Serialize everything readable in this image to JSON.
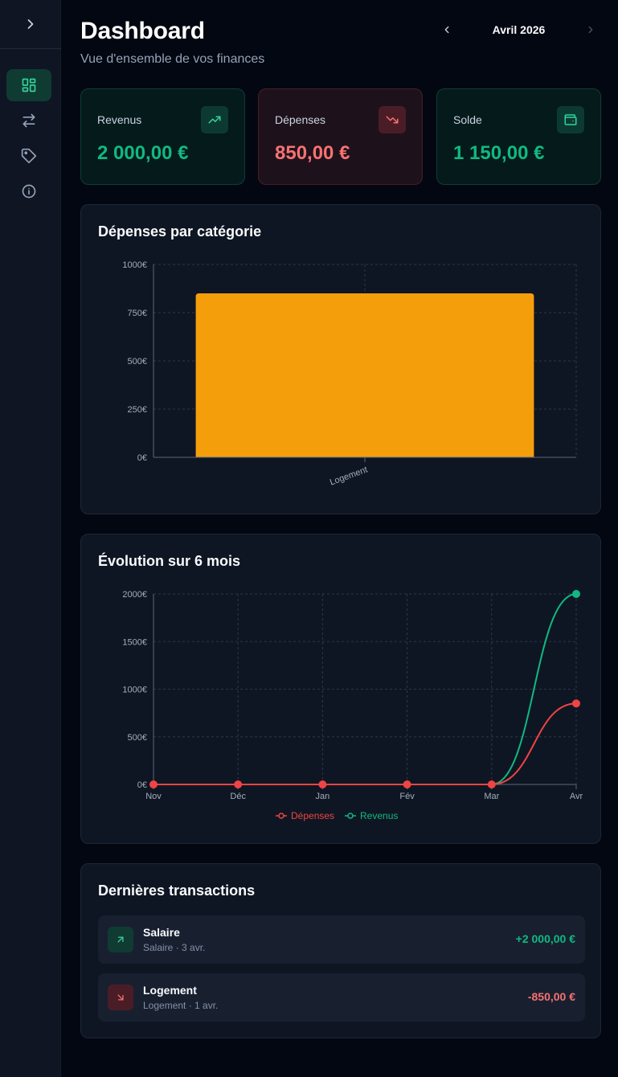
{
  "sidebar": {
    "toggle_icon": "chevron-right-icon",
    "items": [
      {
        "icon": "dashboard-grid-icon",
        "active": true
      },
      {
        "icon": "arrows-exchange-icon",
        "active": false
      },
      {
        "icon": "tag-icon",
        "active": false
      },
      {
        "icon": "info-circle-icon",
        "active": false
      }
    ]
  },
  "header": {
    "title": "Dashboard",
    "subtitle": "Vue d'ensemble de vos finances",
    "month": "Avril 2026"
  },
  "stats": [
    {
      "label": "Revenus",
      "value": "2 000,00 €",
      "icon": "trending-up-icon",
      "tone": "green"
    },
    {
      "label": "Dépenses",
      "value": "850,00 €",
      "icon": "trending-down-icon",
      "tone": "red"
    },
    {
      "label": "Solde",
      "value": "1 150,00 €",
      "icon": "wallet-icon",
      "tone": "green"
    }
  ],
  "colors": {
    "income": "#10b981",
    "expense": "#ef4444",
    "bar": "#f59e0b"
  },
  "chart_data": [
    {
      "type": "bar",
      "title": "Dépenses par catégorie",
      "categories": [
        "Logement"
      ],
      "values": [
        850
      ],
      "yticks": [
        "0€",
        "250€",
        "500€",
        "750€",
        "1000€"
      ],
      "ylim": [
        0,
        1000
      ],
      "grid": true
    },
    {
      "type": "line",
      "title": "Évolution sur 6 mois",
      "x": [
        "Nov",
        "Déc",
        "Jan",
        "Fév",
        "Mar",
        "Avr"
      ],
      "yticks": [
        "0€",
        "500€",
        "1000€",
        "1500€",
        "2000€"
      ],
      "ylim": [
        0,
        2000
      ],
      "grid": true,
      "legend": "bottom-center",
      "series": [
        {
          "name": "Dépenses",
          "values": [
            0,
            0,
            0,
            0,
            0,
            850
          ],
          "color": "#ef4444"
        },
        {
          "name": "Revenus",
          "values": [
            0,
            0,
            0,
            0,
            0,
            2000
          ],
          "color": "#10b981"
        }
      ]
    }
  ],
  "transactions": {
    "title": "Dernières transactions",
    "items": [
      {
        "name": "Salaire",
        "meta": "Salaire · 3 avr.",
        "amount": "+2 000,00 €",
        "direction": "in"
      },
      {
        "name": "Logement",
        "meta": "Logement · 1 avr.",
        "amount": "-850,00 €",
        "direction": "out"
      }
    ]
  }
}
